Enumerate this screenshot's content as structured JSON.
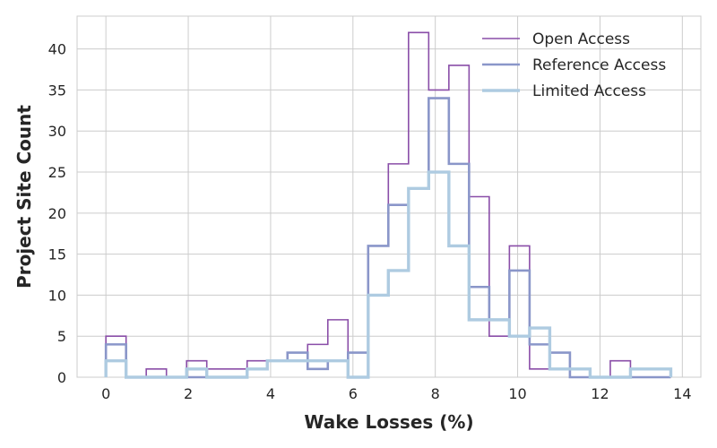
{
  "chart_data": {
    "type": "line",
    "style": "step-histogram",
    "title": "",
    "xlabel": "Wake Losses (%)",
    "ylabel": "Project Site Count",
    "xlim": [
      -0.7,
      14.45
    ],
    "ylim": [
      0,
      44
    ],
    "xticks": [
      0,
      2,
      4,
      6,
      8,
      10,
      12,
      14
    ],
    "yticks": [
      0,
      5,
      10,
      15,
      20,
      25,
      30,
      35,
      40
    ],
    "grid": true,
    "legend_position": "top-right",
    "bin_edges": [
      0,
      0.49,
      0.98,
      1.47,
      1.96,
      2.45,
      2.94,
      3.43,
      3.92,
      4.41,
      4.9,
      5.39,
      5.88,
      6.37,
      6.86,
      7.35,
      7.84,
      8.33,
      8.82,
      9.31,
      9.8,
      10.29,
      10.78,
      11.27,
      11.76,
      12.25,
      12.74,
      13.23,
      13.72
    ],
    "series": [
      {
        "name": "Open Access",
        "color": "#8a4ea8",
        "values": [
          5,
          0,
          1,
          0,
          2,
          1,
          1,
          2,
          2,
          3,
          4,
          7,
          3,
          16,
          26,
          42,
          35,
          38,
          22,
          5,
          16,
          1,
          3,
          0,
          0,
          2,
          0,
          0
        ]
      },
      {
        "name": "Reference Access",
        "color": "#8a96c9",
        "values": [
          4,
          0,
          0,
          0,
          0,
          0,
          0,
          1,
          2,
          3,
          1,
          2,
          3,
          16,
          21,
          23,
          34,
          26,
          11,
          7,
          13,
          4,
          3,
          0,
          0,
          0,
          0,
          0
        ]
      },
      {
        "name": "Limited Access",
        "color": "#aecbe1",
        "values": [
          2,
          0,
          0,
          0,
          1,
          0,
          0,
          1,
          2,
          2,
          2,
          2,
          0,
          10,
          13,
          23,
          25,
          16,
          7,
          7,
          5,
          6,
          1,
          1,
          0,
          0,
          1,
          1
        ]
      }
    ]
  }
}
